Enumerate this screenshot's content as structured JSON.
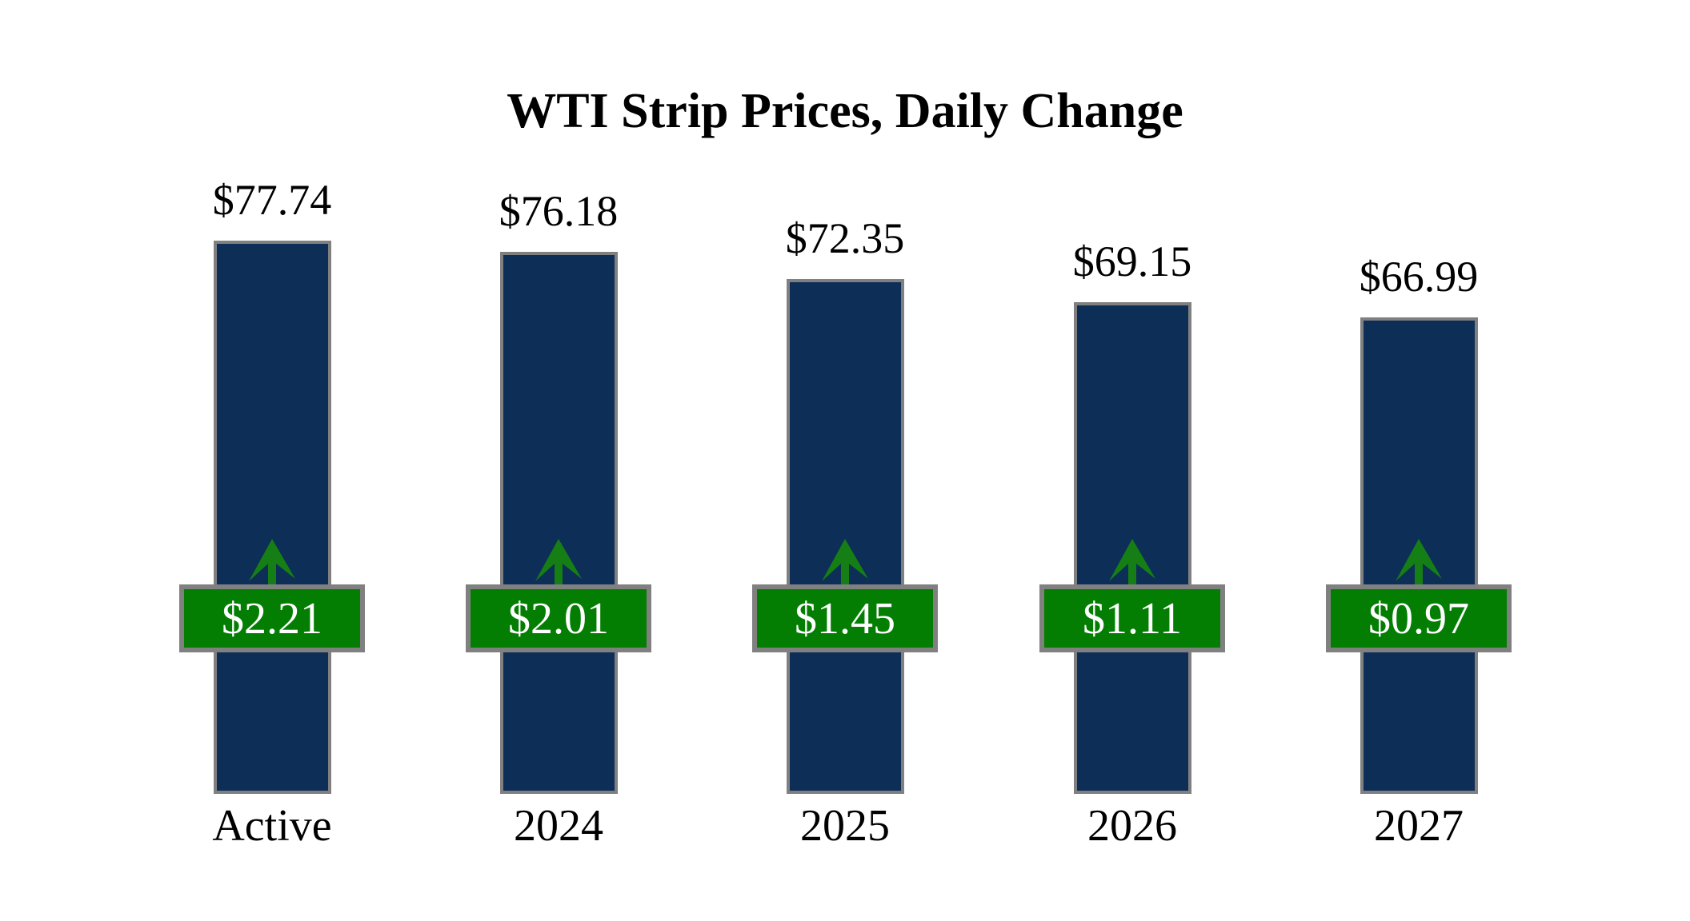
{
  "title": "WTI Strip Prices, Daily Change",
  "chart_data": {
    "type": "bar",
    "title": "WTI Strip Prices, Daily Change",
    "categories": [
      "Active",
      "2024",
      "2025",
      "2026",
      "2027"
    ],
    "series": [
      {
        "name": "WTI strip price",
        "values": [
          77.74,
          76.18,
          72.35,
          69.15,
          66.99
        ],
        "labels": [
          "$77.74",
          "$76.18",
          "$72.35",
          "$69.15",
          "$66.99"
        ]
      },
      {
        "name": "Daily change",
        "values": [
          2.21,
          2.01,
          1.45,
          1.11,
          0.97
        ],
        "labels": [
          "$2.21",
          "$2.01",
          "$1.45",
          "$1.11",
          "$0.97"
        ],
        "direction": "up"
      }
    ],
    "ylim": [
      0,
      80
    ],
    "grid": false,
    "legend": false,
    "colors": {
      "bar_fill": "#0d2e57",
      "bar_border": "#808080",
      "badge_fill": "#037e03",
      "badge_border": "#808080",
      "arrow": "#157f15",
      "value_text": "#000000",
      "badge_text": "#ffffff",
      "background": "#ffffff"
    }
  }
}
